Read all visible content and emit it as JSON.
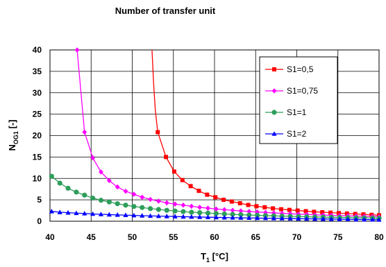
{
  "chart_data": {
    "type": "line",
    "title": "Number of transfer unit",
    "xlabel": {
      "main": "T",
      "sub": "1",
      "rest": " [°C]"
    },
    "ylabel": {
      "main": "N",
      "sub": "OG1",
      "rest": " [-]"
    },
    "xlim": [
      40,
      80
    ],
    "ylim": [
      0,
      40
    ],
    "xticks": [
      40,
      45,
      50,
      55,
      60,
      65,
      70,
      75,
      80
    ],
    "yticks": [
      0,
      5,
      10,
      15,
      20,
      25,
      30,
      35,
      40
    ],
    "grid": true,
    "legend_position": "top-right",
    "series": [
      {
        "name": "S1=0,5",
        "color": "#ff0000",
        "marker": "square",
        "x": [
          53.1,
          54.1,
          55.1,
          56.1,
          57.1,
          58.1,
          59.1,
          60.1,
          61.1,
          62.1,
          63.1,
          64.1,
          65.1,
          66.1,
          67.1,
          68.1,
          69.1,
          70.1,
          71.1,
          72.1,
          73.1,
          74.1,
          75.1,
          76.1,
          77.1,
          78.1,
          79.1,
          80.0
        ],
        "y": [
          20.8,
          15.0,
          11.6,
          9.6,
          8.2,
          7.1,
          6.2,
          5.6,
          5.0,
          4.6,
          4.2,
          3.8,
          3.5,
          3.25,
          3.0,
          2.8,
          2.65,
          2.5,
          2.35,
          2.2,
          2.1,
          2.0,
          1.9,
          1.8,
          1.7,
          1.6,
          1.5,
          1.4
        ],
        "curve_to_top": {
          "x": [
            52.4,
            52.6,
            52.8,
            53.1
          ],
          "y": [
            40,
            32,
            26,
            20.8
          ]
        }
      },
      {
        "name": "S1=0,75",
        "color": "#ff00ff",
        "marker": "diamond",
        "x": [
          43.3,
          44.2,
          45.2,
          46.2,
          47.2,
          48.2,
          49.2,
          50.2,
          51.2,
          52.2,
          53.2,
          54.2,
          55.2,
          56.2,
          57.2,
          58.2,
          59.2,
          60.2,
          61.2,
          62.2,
          63.2,
          64.2,
          65.2,
          66.2,
          67.2,
          68.2,
          69.2,
          70.2,
          71.2,
          72.2,
          73.2,
          74.2,
          75.2,
          76.2,
          77.2,
          78.2,
          79.2,
          80.0
        ],
        "y": [
          40,
          20.8,
          14.8,
          11.5,
          9.5,
          8.0,
          7.0,
          6.3,
          5.6,
          5.1,
          4.7,
          4.3,
          4.0,
          3.75,
          3.5,
          3.25,
          3.05,
          2.85,
          2.7,
          2.55,
          2.4,
          2.28,
          2.15,
          2.05,
          1.95,
          1.85,
          1.75,
          1.65,
          1.6,
          1.5,
          1.45,
          1.38,
          1.3,
          1.25,
          1.2,
          1.15,
          1.1,
          1.05
        ]
      },
      {
        "name": "S1=1",
        "color": "#2e9e5a",
        "marker": "circle",
        "x": [
          40.2,
          41.2,
          42.2,
          43.2,
          44.2,
          45.2,
          46.2,
          47.2,
          48.2,
          49.2,
          50.2,
          51.2,
          52.2,
          53.2,
          54.2,
          55.2,
          56.2,
          57.2,
          58.2,
          59.2,
          60.2,
          61.2,
          62.2,
          63.2,
          64.2,
          65.2,
          66.2,
          67.2,
          68.2,
          69.2,
          70.2,
          71.2,
          72.2,
          73.2,
          74.2,
          75.2,
          76.2,
          77.2,
          78.2,
          79.2,
          80.0
        ],
        "y": [
          10.5,
          8.9,
          7.7,
          6.8,
          6.1,
          5.4,
          4.9,
          4.5,
          4.1,
          3.75,
          3.45,
          3.2,
          2.95,
          2.75,
          2.55,
          2.4,
          2.25,
          2.1,
          2.0,
          1.9,
          1.8,
          1.7,
          1.6,
          1.52,
          1.45,
          1.38,
          1.32,
          1.26,
          1.2,
          1.15,
          1.1,
          1.05,
          1.0,
          0.96,
          0.92,
          0.88,
          0.85,
          0.82,
          0.78,
          0.75,
          0.72
        ]
      },
      {
        "name": "S1=2",
        "color": "#0000ff",
        "marker": "triangle",
        "x": [
          40.2,
          41.2,
          42.2,
          43.2,
          44.2,
          45.2,
          46.2,
          47.2,
          48.2,
          49.2,
          50.2,
          51.2,
          52.2,
          53.2,
          54.2,
          55.2,
          56.2,
          57.2,
          58.2,
          59.2,
          60.2,
          61.2,
          62.2,
          63.2,
          64.2,
          65.2,
          66.2,
          67.2,
          68.2,
          69.2,
          70.2,
          71.2,
          72.2,
          73.2,
          74.2,
          75.2,
          76.2,
          77.2,
          78.2,
          79.2,
          80.0
        ],
        "y": [
          2.3,
          2.1,
          2.0,
          1.9,
          1.8,
          1.7,
          1.62,
          1.55,
          1.48,
          1.42,
          1.36,
          1.3,
          1.25,
          1.2,
          1.15,
          1.1,
          1.06,
          1.02,
          0.98,
          0.94,
          0.9,
          0.86,
          0.83,
          0.8,
          0.77,
          0.74,
          0.71,
          0.68,
          0.65,
          0.62,
          0.6,
          0.57,
          0.55,
          0.52,
          0.5,
          0.47,
          0.45,
          0.42,
          0.4,
          0.37,
          0.35
        ]
      }
    ]
  }
}
